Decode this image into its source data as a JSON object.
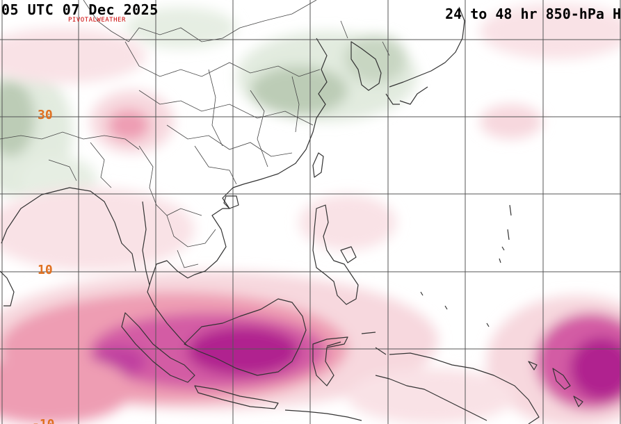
{
  "header": {
    "valid_time": "05 UTC 07 Dec 2025",
    "product": "24 to 48 hr 850-hPa H",
    "watermark": "PIVOTALWEATHER"
  },
  "map": {
    "latitude_labels": [
      "30",
      "10",
      "-10"
    ],
    "colors": {
      "background": "#ffffff",
      "gridlines": "#555555",
      "borders": "#333333",
      "increase_light": "#f7d8de",
      "increase_mid": "#ee9db3",
      "increase_strong": "#d35ba4",
      "increase_max": "#b0208f",
      "decrease_light": "#e2ebdf",
      "decrease_mid": "#bcccb6"
    }
  }
}
